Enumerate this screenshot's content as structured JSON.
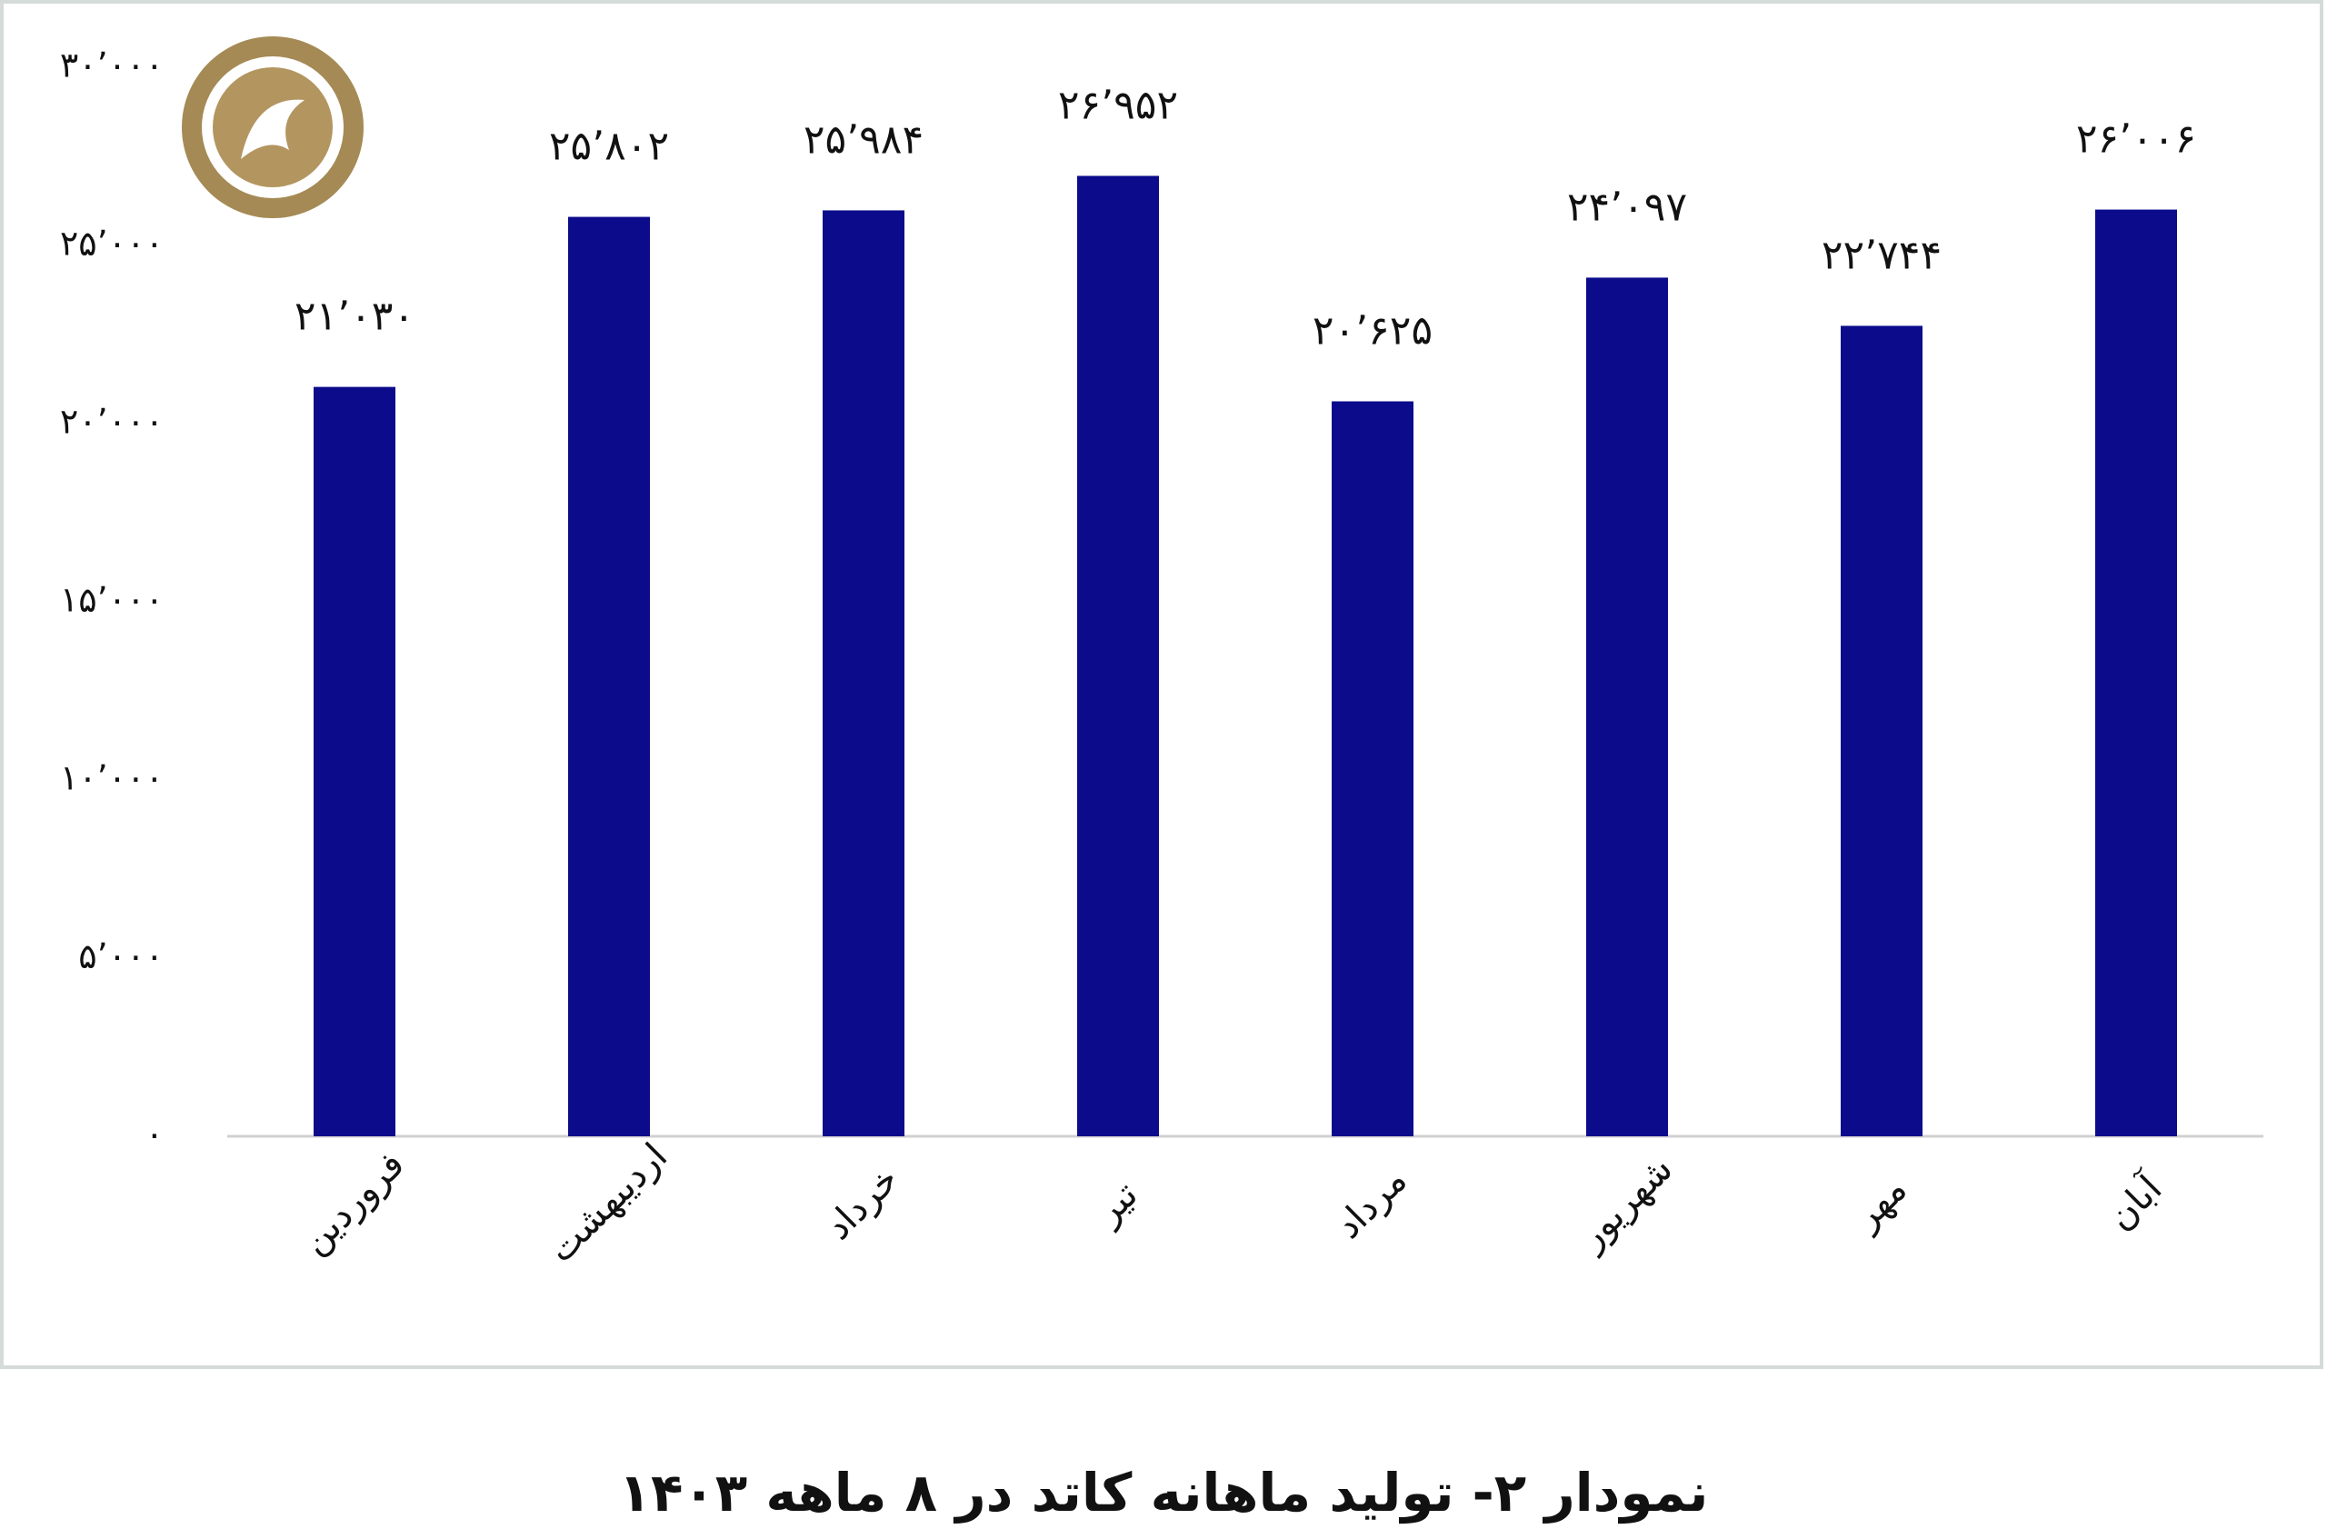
{
  "chart_data": {
    "type": "bar",
    "title": "نمودار ۲- تولید ماهانه کاتد در ۸ ماهه ۱۴۰۳",
    "categories": [
      "فروردین",
      "اردیبهشت",
      "خرداد",
      "تیر",
      "مرداد",
      "شهریور",
      "مهر",
      "آبان"
    ],
    "values": [
      21030,
      25802,
      25984,
      26952,
      20625,
      24097,
      22744,
      26006
    ],
    "value_labels": [
      "۲۱٬۰۳۰",
      "۲۵٬۸۰۲",
      "۲۵٬۹۸۴",
      "۲۶٬۹۵۲",
      "۲۰٬۶۲۵",
      "۲۴٬۰۹۷",
      "۲۲٬۷۴۴",
      "۲۶٬۰۰۶"
    ],
    "color": "#0b0b8c",
    "ylim": [
      0,
      30000
    ],
    "yticks": [
      {
        "value": 0,
        "label": "۰"
      },
      {
        "value": 5000,
        "label": "۵٬۰۰۰"
      },
      {
        "value": 10000,
        "label": "۱۰٬۰۰۰"
      },
      {
        "value": 15000,
        "label": "۱۵٬۰۰۰"
      },
      {
        "value": 20000,
        "label": "۲۰٬۰۰۰"
      },
      {
        "value": 25000,
        "label": "۲۵٬۰۰۰"
      },
      {
        "value": 30000,
        "label": "۳۰٬۰۰۰"
      }
    ],
    "grid": false
  }
}
